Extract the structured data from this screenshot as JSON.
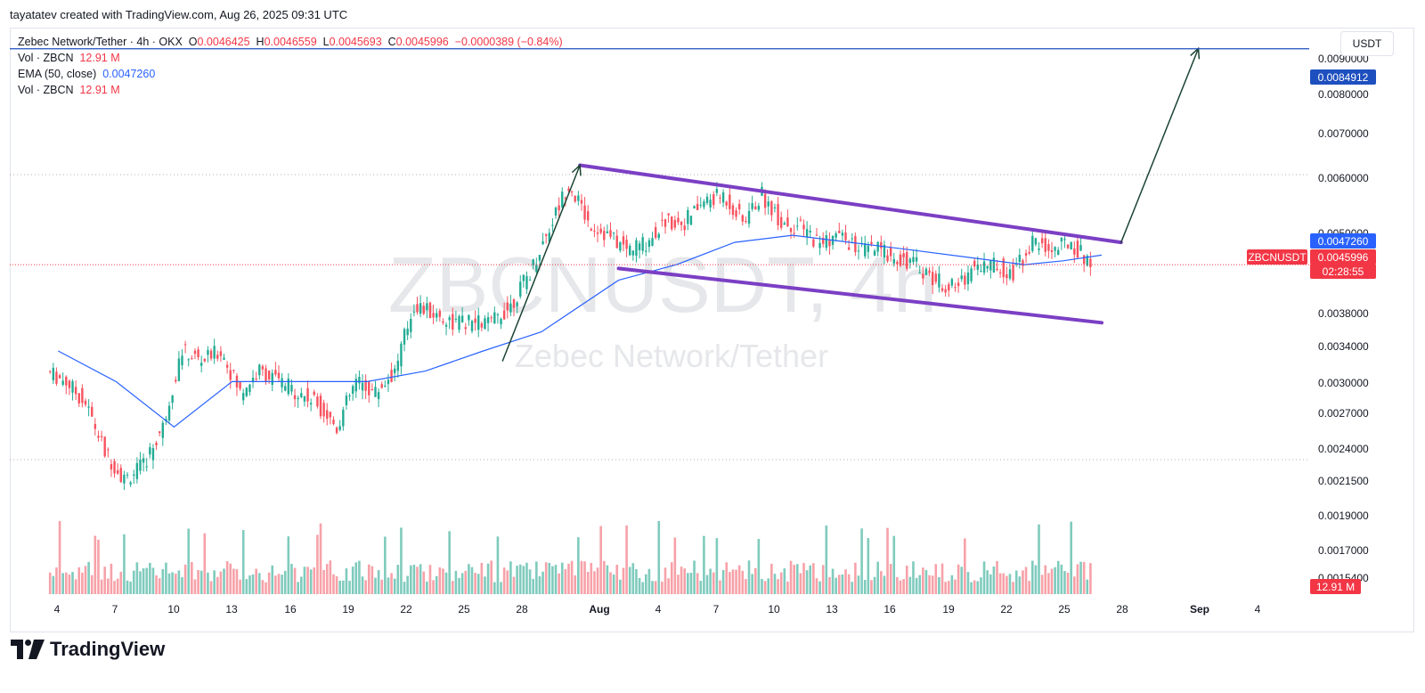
{
  "caption": "tayatatev created with TradingView.com, Aug 26, 2025 09:31 UTC",
  "legend": {
    "symbol": "Zebec Network/Tether · 4h · OKX",
    "o_label": "O",
    "o_value": "0.0046425",
    "h_label": "H",
    "h_value": "0.0046559",
    "l_label": "L",
    "l_value": "0.0045693",
    "c_label": "C",
    "c_value": "0.0045996",
    "change": "−0.0000389 (−0.84%)",
    "vol1_label": "Vol · ZBCN",
    "vol1_value": "12.91 M",
    "ema_label": "EMA (50, close)",
    "ema_value": "0.0047260",
    "vol2_label": "Vol · ZBCN",
    "vol2_value": "12.91 M"
  },
  "currency": "USDT",
  "watermark": {
    "symbol": "ZBCNUSDT, 4h",
    "name": "Zebec Network/Tether"
  },
  "brand": "TradingView",
  "colors": {
    "up": "#22ab94",
    "down": "#f7525f",
    "ema": "#2962ff",
    "channel": "#7b3fc4",
    "arrow": "#1b4332",
    "target": "#1e4fbf"
  },
  "chart_data": {
    "type": "candlestick",
    "interval": "4h",
    "y_scale": "log",
    "y_ticks": [
      "0.0090000",
      "0.0080000",
      "0.0070000",
      "0.0060000",
      "0.0050000",
      "0.0038000",
      "0.0034000",
      "0.0030000",
      "0.0027000",
      "0.0024000",
      "0.0021500",
      "0.0019000",
      "0.0017000",
      "0.0015400"
    ],
    "x_ticks": [
      "4",
      "7",
      "10",
      "13",
      "16",
      "19",
      "22",
      "25",
      "28",
      "Aug",
      "4",
      "7",
      "10",
      "13",
      "16",
      "19",
      "22",
      "25",
      "28",
      "Sep",
      "4"
    ],
    "price_labels": [
      {
        "name": "target",
        "value": "0.0084912"
      },
      {
        "name": "ema",
        "value": "0.0047260"
      },
      {
        "name": "symbol",
        "value": "ZBCNUSDT"
      },
      {
        "name": "last",
        "value": "0.0045996"
      },
      {
        "name": "countdown",
        "value": "02:28:55"
      },
      {
        "name": "volume",
        "value": "12.91 M"
      }
    ],
    "target_price": 0.0084912,
    "last_price": 0.0045996,
    "ema50_last": 0.004726,
    "close_path": [
      [
        "Jul 3",
        0.0034
      ],
      [
        "Jul 4",
        0.0033
      ],
      [
        "Jul 5",
        0.0031
      ],
      [
        "Jul 6",
        0.0027
      ],
      [
        "Jul 7",
        0.0025
      ],
      [
        "Jul 8",
        0.0026
      ],
      [
        "Jul 9",
        0.0029
      ],
      [
        "Jul 10",
        0.0036
      ],
      [
        "Jul 11",
        0.0035
      ],
      [
        "Jul 12",
        0.0036
      ],
      [
        "Jul 13",
        0.0032
      ],
      [
        "Jul 14",
        0.0034
      ],
      [
        "Jul 15",
        0.0033
      ],
      [
        "Jul 16",
        0.0032
      ],
      [
        "Jul 17",
        0.0031
      ],
      [
        "Jul 18",
        0.0029
      ],
      [
        "Jul 19",
        0.0033
      ],
      [
        "Jul 20",
        0.0032
      ],
      [
        "Jul 21",
        0.0034
      ],
      [
        "Jul 22",
        0.0041
      ],
      [
        "Jul 23",
        0.004
      ],
      [
        "Jul 24",
        0.0039
      ],
      [
        "Jul 25",
        0.0039
      ],
      [
        "Jul 26",
        0.0039
      ],
      [
        "Jul 27",
        0.0041
      ],
      [
        "Jul 28",
        0.0045
      ],
      [
        "Jul 29",
        0.0051
      ],
      [
        "Jul 30",
        0.0058
      ],
      [
        "Jul 31",
        0.0052
      ],
      [
        "Aug 1",
        0.005
      ],
      [
        "Aug 2",
        0.0048
      ],
      [
        "Aug 3",
        0.0049
      ],
      [
        "Aug 4",
        0.0052
      ],
      [
        "Aug 5",
        0.0052
      ],
      [
        "Aug 6",
        0.0055
      ],
      [
        "Aug 7",
        0.0056
      ],
      [
        "Aug 8",
        0.0052
      ],
      [
        "Aug 9",
        0.0056
      ],
      [
        "Aug 10",
        0.0052
      ],
      [
        "Aug 11",
        0.0051
      ],
      [
        "Aug 12",
        0.0049
      ],
      [
        "Aug 13",
        0.005
      ],
      [
        "Aug 14",
        0.0048
      ],
      [
        "Aug 15",
        0.0048
      ],
      [
        "Aug 16",
        0.0047
      ],
      [
        "Aug 17",
        0.0046
      ],
      [
        "Aug 18",
        0.0044
      ],
      [
        "Aug 19",
        0.0043
      ],
      [
        "Aug 20",
        0.0046
      ],
      [
        "Aug 21",
        0.0046
      ],
      [
        "Aug 22",
        0.0045
      ],
      [
        "Aug 23",
        0.0049
      ],
      [
        "Aug 24",
        0.0048
      ],
      [
        "Aug 25",
        0.0049
      ],
      [
        "Aug 26",
        0.0046
      ]
    ],
    "ema_path": [
      [
        "Jul 3",
        0.0036
      ],
      [
        "Jul 6",
        0.0033
      ],
      [
        "Jul 9",
        0.0029
      ],
      [
        "Jul 12",
        0.0033
      ],
      [
        "Jul 16",
        0.0033
      ],
      [
        "Jul 19",
        0.0033
      ],
      [
        "Jul 22",
        0.0034
      ],
      [
        "Jul 25",
        0.0036
      ],
      [
        "Jul 28",
        0.0038
      ],
      [
        "Aug 1",
        0.0044
      ],
      [
        "Aug 4",
        0.0046
      ],
      [
        "Aug 7",
        0.0049
      ],
      [
        "Aug 10",
        0.005
      ],
      [
        "Aug 13",
        0.0049
      ],
      [
        "Aug 16",
        0.0048
      ],
      [
        "Aug 19",
        0.0047
      ],
      [
        "Aug 22",
        0.0046
      ],
      [
        "Aug 24",
        0.00465
      ],
      [
        "Aug 26",
        0.004726
      ]
    ],
    "annotations": {
      "channel_upper": [
        [
          "Jul 30",
          0.0061
        ],
        [
          "Aug 27",
          0.0049
        ]
      ],
      "channel_lower": [
        [
          "Aug 1",
          0.00455
        ],
        [
          "Aug 26",
          0.0039
        ]
      ],
      "impulse_arrow": [
        [
          "Jul 26",
          0.0035
        ],
        [
          "Jul 30",
          0.0061
        ]
      ],
      "target_arrow": [
        [
          "Aug 27",
          0.0049
        ],
        [
          "Aug 31",
          0.0085
        ]
      ]
    }
  }
}
